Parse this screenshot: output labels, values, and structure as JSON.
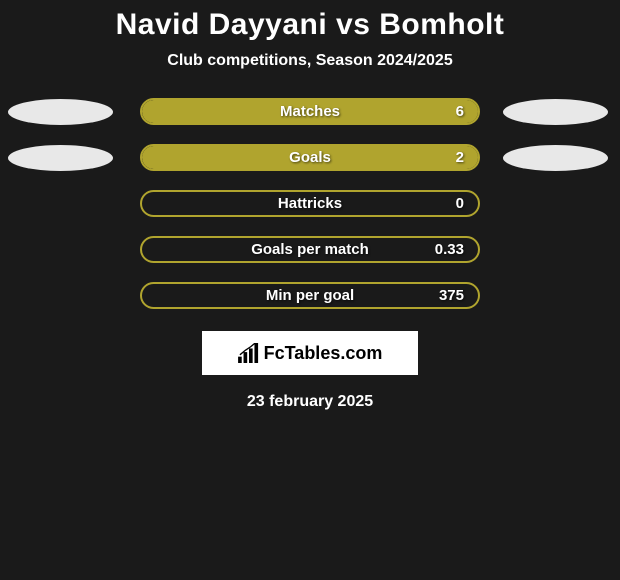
{
  "title": "Navid Dayyani vs Bomholt",
  "subtitle": "Club competitions, Season 2024/2025",
  "colors": {
    "oval_left": "#e8e8e8",
    "oval_right": "#e8e8e8",
    "accent": "#b0a42e",
    "background": "#1a1a1a"
  },
  "stats": [
    {
      "label": "Matches",
      "value": "6",
      "fill_pct": 100,
      "show_ovals": true
    },
    {
      "label": "Goals",
      "value": "2",
      "fill_pct": 100,
      "show_ovals": true
    },
    {
      "label": "Hattricks",
      "value": "0",
      "fill_pct": 0,
      "show_ovals": false
    },
    {
      "label": "Goals per match",
      "value": "0.33",
      "fill_pct": 0,
      "show_ovals": false
    },
    {
      "label": "Min per goal",
      "value": "375",
      "fill_pct": 0,
      "show_ovals": false
    }
  ],
  "logo_text": "FcTables.com",
  "date": "23 february 2025"
}
